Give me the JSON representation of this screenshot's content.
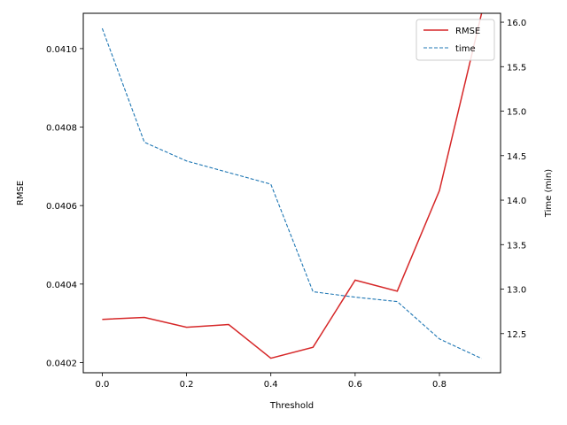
{
  "chart_data": {
    "type": "line",
    "x": [
      0.0,
      0.1,
      0.2,
      0.3,
      0.4,
      0.5,
      0.6,
      0.7,
      0.8,
      0.9
    ],
    "xlabel": "Threshold",
    "xlim": [
      -0.045,
      0.945
    ],
    "xticks": [
      0.0,
      0.2,
      0.4,
      0.6,
      0.8
    ],
    "xtick_labels": [
      "0.0",
      "0.2",
      "0.4",
      "0.6",
      "0.8"
    ],
    "left_axis": {
      "label": "RMSE",
      "lim": [
        0.040174,
        0.04109
      ],
      "ticks": [
        0.0402,
        0.0404,
        0.0406,
        0.0408,
        0.041
      ],
      "tick_labels": [
        "0.0402",
        "0.0404",
        "0.0406",
        "0.0408",
        "0.0410"
      ]
    },
    "right_axis": {
      "label": "Time (min)",
      "lim": [
        12.06,
        16.1
      ],
      "ticks": [
        12.5,
        13.0,
        13.5,
        14.0,
        14.5,
        15.0,
        15.5,
        16.0
      ],
      "tick_labels": [
        "12.5",
        "13.0",
        "13.5",
        "14.0",
        "14.5",
        "15.0",
        "15.5",
        "16.0"
      ]
    },
    "series": [
      {
        "name": "RMSE",
        "axis": "left",
        "style": "solid",
        "color": "#d62728",
        "values": [
          0.04031,
          0.040315,
          0.04029,
          0.040297,
          0.040211,
          0.040239,
          0.04041,
          0.040382,
          0.040638,
          0.04109
        ]
      },
      {
        "name": "time",
        "axis": "right",
        "style": "dashed",
        "color": "#1f77b4",
        "values": [
          15.93,
          14.65,
          14.44,
          14.31,
          14.18,
          12.97,
          12.91,
          12.86,
          12.44,
          12.22
        ]
      }
    ],
    "legend": {
      "position": "top-right"
    },
    "grid": false
  }
}
